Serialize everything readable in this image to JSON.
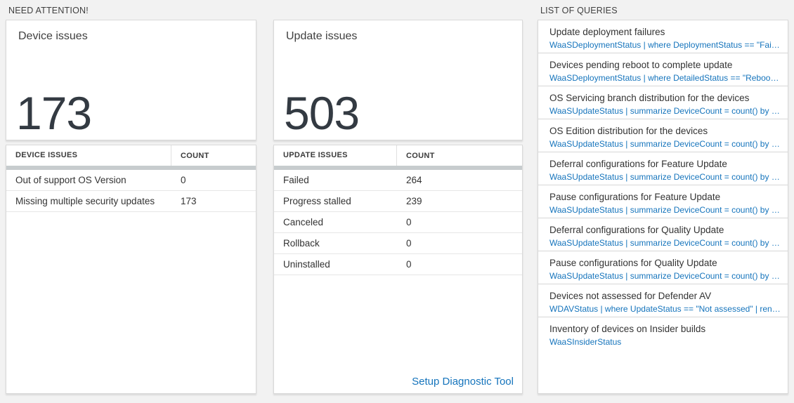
{
  "colors": {
    "page_background": "#f2f2f2",
    "tile_background": "#ffffff",
    "accent_blue": "#1574bc",
    "big_number_color": "#333a42",
    "thick_bar_gray": "#c7ccce"
  },
  "sections": {
    "need_attention": "NEED ATTENTION!",
    "list_of_queries": "LIST OF QUERIES"
  },
  "device_tile": {
    "title": "Device issues",
    "big_number": "173",
    "table": {
      "headers": [
        "DEVICE ISSUES",
        "COUNT"
      ],
      "rows": [
        {
          "label": "Out of support OS Version",
          "count": "0"
        },
        {
          "label": "Missing multiple security updates",
          "count": "173"
        }
      ]
    }
  },
  "update_tile": {
    "title": "Update issues",
    "big_number": "503",
    "table": {
      "headers": [
        "UPDATE ISSUES",
        "COUNT"
      ],
      "rows": [
        {
          "label": "Failed",
          "count": "264"
        },
        {
          "label": "Progress stalled",
          "count": "239"
        },
        {
          "label": "Canceled",
          "count": "0"
        },
        {
          "label": "Rollback",
          "count": "0"
        },
        {
          "label": "Uninstalled",
          "count": "0"
        }
      ]
    },
    "link_label": "Setup Diagnostic Tool"
  },
  "queries": [
    {
      "title": "Update deployment failures",
      "query": "WaaSDeploymentStatus | where DeploymentStatus == \"Failed\" |..."
    },
    {
      "title": "Devices pending reboot to complete update",
      "query": "WaaSDeploymentStatus | where DetailedStatus == \"Reboot pend..."
    },
    {
      "title": "OS Servicing branch distribution for the devices",
      "query": "WaaSUpdateStatus | summarize DeviceCount = count() by OSSer..."
    },
    {
      "title": "OS Edition distribution for the devices",
      "query": "WaaSUpdateStatus | summarize DeviceCount = count() by OSEdit..."
    },
    {
      "title": "Deferral configurations for Feature Update",
      "query": "WaaSUpdateStatus | summarize DeviceCount = count() by Featur..."
    },
    {
      "title": "Pause configurations for Feature Update",
      "query": "WaaSUpdateStatus | summarize DeviceCount = count() by Featur..."
    },
    {
      "title": "Deferral configurations for Quality Update",
      "query": "WaaSUpdateStatus | summarize DeviceCount = count() by Qualit..."
    },
    {
      "title": "Pause configurations for Quality Update",
      "query": "WaaSUpdateStatus | summarize DeviceCount = count() by Qualit..."
    },
    {
      "title": "Devices not assessed for Defender AV",
      "query": "WDAVStatus | where UpdateStatus == \"Not assessed\" | render ta..."
    },
    {
      "title": "Inventory of devices on Insider builds",
      "query": "WaaSInsiderStatus"
    }
  ]
}
